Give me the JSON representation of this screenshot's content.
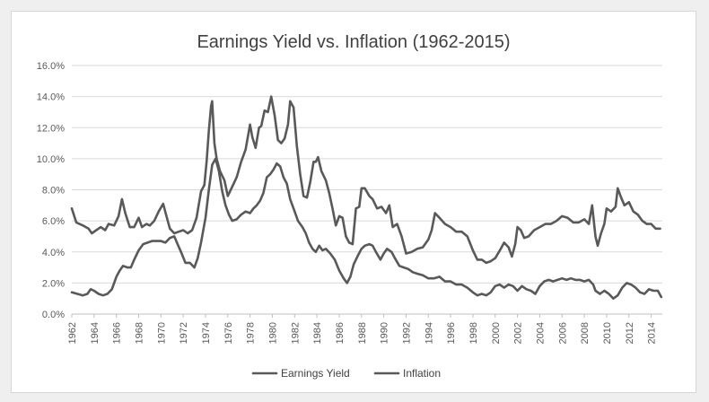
{
  "chart_data": {
    "type": "line",
    "title": "Earnings Yield vs. Inflation (1962-2015)",
    "xlabel": "",
    "ylabel": "",
    "xlim": [
      1962,
      2015
    ],
    "ylim": [
      0,
      16
    ],
    "yticks": [
      "0.0%",
      "2.0%",
      "4.0%",
      "6.0%",
      "8.0%",
      "10.0%",
      "12.0%",
      "14.0%",
      "16.0%"
    ],
    "xticks": [
      "1962",
      "1964",
      "1966",
      "1968",
      "1970",
      "1972",
      "1974",
      "1976",
      "1978",
      "1980",
      "1982",
      "1984",
      "1986",
      "1988",
      "1990",
      "1992",
      "1994",
      "1996",
      "1998",
      "2000",
      "2002",
      "2004",
      "2006",
      "2008",
      "2010",
      "2012",
      "2014"
    ],
    "grid": true,
    "legend_position": "bottom-center",
    "series": [
      {
        "name": "Earnings Yield",
        "color": "#595959",
        "points": [
          [
            1962.0,
            6.8
          ],
          [
            1962.4,
            5.9
          ],
          [
            1963.0,
            5.7
          ],
          [
            1963.5,
            5.5
          ],
          [
            1963.8,
            5.2
          ],
          [
            1964.2,
            5.4
          ],
          [
            1964.6,
            5.6
          ],
          [
            1965.0,
            5.4
          ],
          [
            1965.3,
            5.8
          ],
          [
            1965.8,
            5.7
          ],
          [
            1966.2,
            6.3
          ],
          [
            1966.5,
            7.4
          ],
          [
            1966.8,
            6.5
          ],
          [
            1967.2,
            5.6
          ],
          [
            1967.6,
            5.6
          ],
          [
            1968.0,
            6.2
          ],
          [
            1968.3,
            5.6
          ],
          [
            1968.7,
            5.8
          ],
          [
            1969.0,
            5.7
          ],
          [
            1969.4,
            6.0
          ],
          [
            1969.8,
            6.6
          ],
          [
            1970.2,
            7.1
          ],
          [
            1970.5,
            6.3
          ],
          [
            1970.8,
            5.5
          ],
          [
            1971.2,
            5.2
          ],
          [
            1971.6,
            5.3
          ],
          [
            1972.0,
            5.4
          ],
          [
            1972.4,
            5.2
          ],
          [
            1972.8,
            5.4
          ],
          [
            1973.2,
            6.2
          ],
          [
            1973.6,
            7.9
          ],
          [
            1973.9,
            8.3
          ],
          [
            1974.1,
            9.8
          ],
          [
            1974.3,
            11.8
          ],
          [
            1974.5,
            13.4
          ],
          [
            1974.6,
            13.7
          ],
          [
            1974.8,
            11.0
          ],
          [
            1975.0,
            10.0
          ],
          [
            1975.3,
            9.2
          ],
          [
            1975.7,
            8.6
          ],
          [
            1976.0,
            7.6
          ],
          [
            1976.4,
            8.2
          ],
          [
            1976.8,
            8.8
          ],
          [
            1977.2,
            9.8
          ],
          [
            1977.6,
            10.6
          ],
          [
            1978.0,
            12.2
          ],
          [
            1978.2,
            11.4
          ],
          [
            1978.5,
            10.7
          ],
          [
            1978.8,
            12.0
          ],
          [
            1979.0,
            12.1
          ],
          [
            1979.3,
            13.1
          ],
          [
            1979.6,
            13.0
          ],
          [
            1979.9,
            14.0
          ],
          [
            1980.2,
            12.8
          ],
          [
            1980.5,
            11.2
          ],
          [
            1980.8,
            11.0
          ],
          [
            1981.1,
            11.3
          ],
          [
            1981.4,
            12.2
          ],
          [
            1981.6,
            13.7
          ],
          [
            1981.9,
            13.3
          ],
          [
            1982.2,
            10.8
          ],
          [
            1982.5,
            9.0
          ],
          [
            1982.8,
            7.6
          ],
          [
            1983.1,
            7.5
          ],
          [
            1983.4,
            8.5
          ],
          [
            1983.7,
            9.8
          ],
          [
            1983.9,
            9.8
          ],
          [
            1984.1,
            10.1
          ],
          [
            1984.4,
            9.2
          ],
          [
            1984.8,
            8.6
          ],
          [
            1985.1,
            7.8
          ],
          [
            1985.4,
            6.8
          ],
          [
            1985.7,
            5.7
          ],
          [
            1986.0,
            6.3
          ],
          [
            1986.3,
            6.2
          ],
          [
            1986.6,
            5.0
          ],
          [
            1986.9,
            4.6
          ],
          [
            1987.2,
            4.5
          ],
          [
            1987.5,
            6.8
          ],
          [
            1987.8,
            6.9
          ],
          [
            1988.0,
            8.1
          ],
          [
            1988.3,
            8.1
          ],
          [
            1988.7,
            7.6
          ],
          [
            1989.0,
            7.4
          ],
          [
            1989.4,
            6.8
          ],
          [
            1989.8,
            6.9
          ],
          [
            1990.2,
            6.5
          ],
          [
            1990.5,
            7.0
          ],
          [
            1990.8,
            5.6
          ],
          [
            1991.2,
            5.8
          ],
          [
            1991.6,
            5.0
          ],
          [
            1992.0,
            3.9
          ],
          [
            1992.5,
            4.0
          ],
          [
            1993.0,
            4.2
          ],
          [
            1993.5,
            4.3
          ],
          [
            1994.0,
            4.8
          ],
          [
            1994.3,
            5.4
          ],
          [
            1994.6,
            6.5
          ],
          [
            1995.0,
            6.2
          ],
          [
            1995.5,
            5.8
          ],
          [
            1996.0,
            5.6
          ],
          [
            1996.5,
            5.3
          ],
          [
            1997.0,
            5.3
          ],
          [
            1997.5,
            5.0
          ],
          [
            1998.0,
            4.1
          ],
          [
            1998.4,
            3.5
          ],
          [
            1998.8,
            3.5
          ],
          [
            1999.2,
            3.3
          ],
          [
            1999.6,
            3.4
          ],
          [
            2000.0,
            3.6
          ],
          [
            2000.5,
            4.2
          ],
          [
            2000.8,
            4.6
          ],
          [
            2001.2,
            4.3
          ],
          [
            2001.5,
            3.7
          ],
          [
            2001.8,
            4.5
          ],
          [
            2002.0,
            5.6
          ],
          [
            2002.3,
            5.4
          ],
          [
            2002.6,
            4.9
          ],
          [
            2003.0,
            5.0
          ],
          [
            2003.5,
            5.4
          ],
          [
            2004.0,
            5.6
          ],
          [
            2004.5,
            5.8
          ],
          [
            2005.0,
            5.8
          ],
          [
            2005.5,
            6.0
          ],
          [
            2006.0,
            6.3
          ],
          [
            2006.5,
            6.2
          ],
          [
            2007.0,
            5.9
          ],
          [
            2007.5,
            5.9
          ],
          [
            2008.0,
            6.1
          ],
          [
            2008.4,
            5.8
          ],
          [
            2008.7,
            7.0
          ],
          [
            2009.0,
            5.0
          ],
          [
            2009.2,
            4.4
          ],
          [
            2009.5,
            5.2
          ],
          [
            2009.8,
            5.8
          ],
          [
            2010.0,
            6.8
          ],
          [
            2010.4,
            6.6
          ],
          [
            2010.8,
            6.9
          ],
          [
            2011.0,
            8.1
          ],
          [
            2011.3,
            7.5
          ],
          [
            2011.6,
            7.0
          ],
          [
            2012.0,
            7.2
          ],
          [
            2012.4,
            6.6
          ],
          [
            2012.8,
            6.4
          ],
          [
            2013.2,
            6.0
          ],
          [
            2013.6,
            5.8
          ],
          [
            2014.0,
            5.8
          ],
          [
            2014.4,
            5.5
          ],
          [
            2014.8,
            5.5
          ]
        ]
      },
      {
        "name": "Inflation",
        "color": "#595959",
        "points": [
          [
            1962.0,
            1.4
          ],
          [
            1962.5,
            1.3
          ],
          [
            1963.0,
            1.2
          ],
          [
            1963.4,
            1.3
          ],
          [
            1963.7,
            1.6
          ],
          [
            1964.0,
            1.5
          ],
          [
            1964.4,
            1.3
          ],
          [
            1964.8,
            1.2
          ],
          [
            1965.2,
            1.3
          ],
          [
            1965.6,
            1.6
          ],
          [
            1966.0,
            2.4
          ],
          [
            1966.3,
            2.8
          ],
          [
            1966.6,
            3.1
          ],
          [
            1967.0,
            3.0
          ],
          [
            1967.3,
            3.0
          ],
          [
            1967.6,
            3.5
          ],
          [
            1968.0,
            4.1
          ],
          [
            1968.4,
            4.5
          ],
          [
            1968.8,
            4.6
          ],
          [
            1969.2,
            4.7
          ],
          [
            1969.6,
            4.7
          ],
          [
            1970.0,
            4.7
          ],
          [
            1970.4,
            4.6
          ],
          [
            1970.8,
            4.9
          ],
          [
            1971.2,
            5.0
          ],
          [
            1971.5,
            4.5
          ],
          [
            1971.8,
            4.0
          ],
          [
            1972.2,
            3.3
          ],
          [
            1972.6,
            3.3
          ],
          [
            1973.0,
            3.0
          ],
          [
            1973.3,
            3.6
          ],
          [
            1973.6,
            4.6
          ],
          [
            1974.0,
            6.2
          ],
          [
            1974.3,
            8.0
          ],
          [
            1974.6,
            9.6
          ],
          [
            1974.9,
            10.0
          ],
          [
            1975.2,
            9.2
          ],
          [
            1975.5,
            7.9
          ],
          [
            1975.8,
            7.0
          ],
          [
            1976.1,
            6.4
          ],
          [
            1976.4,
            6.0
          ],
          [
            1976.8,
            6.1
          ],
          [
            1977.2,
            6.4
          ],
          [
            1977.6,
            6.6
          ],
          [
            1978.0,
            6.5
          ],
          [
            1978.3,
            6.8
          ],
          [
            1978.6,
            7.0
          ],
          [
            1978.9,
            7.3
          ],
          [
            1979.2,
            7.8
          ],
          [
            1979.5,
            8.8
          ],
          [
            1979.8,
            9.0
          ],
          [
            1980.1,
            9.3
          ],
          [
            1980.4,
            9.7
          ],
          [
            1980.7,
            9.5
          ],
          [
            1981.0,
            8.8
          ],
          [
            1981.3,
            8.4
          ],
          [
            1981.6,
            7.4
          ],
          [
            1982.0,
            6.6
          ],
          [
            1982.3,
            6.0
          ],
          [
            1982.7,
            5.6
          ],
          [
            1983.0,
            5.2
          ],
          [
            1983.3,
            4.6
          ],
          [
            1983.6,
            4.2
          ],
          [
            1983.9,
            4.0
          ],
          [
            1984.2,
            4.4
          ],
          [
            1984.5,
            4.1
          ],
          [
            1984.8,
            4.2
          ],
          [
            1985.2,
            3.9
          ],
          [
            1985.6,
            3.5
          ],
          [
            1986.0,
            2.8
          ],
          [
            1986.4,
            2.3
          ],
          [
            1986.7,
            2.0
          ],
          [
            1987.0,
            2.4
          ],
          [
            1987.3,
            3.2
          ],
          [
            1987.7,
            3.8
          ],
          [
            1988.0,
            4.2
          ],
          [
            1988.3,
            4.4
          ],
          [
            1988.7,
            4.5
          ],
          [
            1989.0,
            4.4
          ],
          [
            1989.3,
            4.0
          ],
          [
            1989.7,
            3.5
          ],
          [
            1990.0,
            3.9
          ],
          [
            1990.3,
            4.2
          ],
          [
            1990.7,
            4.0
          ],
          [
            1991.0,
            3.6
          ],
          [
            1991.4,
            3.1
          ],
          [
            1991.8,
            3.0
          ],
          [
            1992.2,
            2.9
          ],
          [
            1992.6,
            2.7
          ],
          [
            1993.0,
            2.6
          ],
          [
            1993.5,
            2.5
          ],
          [
            1994.0,
            2.3
          ],
          [
            1994.5,
            2.3
          ],
          [
            1995.0,
            2.4
          ],
          [
            1995.5,
            2.1
          ],
          [
            1996.0,
            2.1
          ],
          [
            1996.5,
            1.9
          ],
          [
            1997.0,
            1.9
          ],
          [
            1997.5,
            1.7
          ],
          [
            1998.0,
            1.4
          ],
          [
            1998.4,
            1.2
          ],
          [
            1998.8,
            1.3
          ],
          [
            1999.2,
            1.2
          ],
          [
            1999.6,
            1.4
          ],
          [
            2000.0,
            1.8
          ],
          [
            2000.4,
            1.9
          ],
          [
            2000.8,
            1.7
          ],
          [
            2001.2,
            1.9
          ],
          [
            2001.6,
            1.8
          ],
          [
            2002.0,
            1.5
          ],
          [
            2002.4,
            1.8
          ],
          [
            2002.8,
            1.6
          ],
          [
            2003.2,
            1.5
          ],
          [
            2003.6,
            1.3
          ],
          [
            2004.0,
            1.8
          ],
          [
            2004.4,
            2.1
          ],
          [
            2004.8,
            2.2
          ],
          [
            2005.2,
            2.1
          ],
          [
            2005.6,
            2.2
          ],
          [
            2006.0,
            2.3
          ],
          [
            2006.4,
            2.2
          ],
          [
            2006.8,
            2.3
          ],
          [
            2007.2,
            2.2
          ],
          [
            2007.6,
            2.2
          ],
          [
            2008.0,
            2.1
          ],
          [
            2008.4,
            2.2
          ],
          [
            2008.8,
            1.9
          ],
          [
            2009.0,
            1.5
          ],
          [
            2009.4,
            1.3
          ],
          [
            2009.8,
            1.5
          ],
          [
            2010.2,
            1.3
          ],
          [
            2010.6,
            1.0
          ],
          [
            2011.0,
            1.2
          ],
          [
            2011.4,
            1.7
          ],
          [
            2011.8,
            2.0
          ],
          [
            2012.2,
            1.9
          ],
          [
            2012.6,
            1.7
          ],
          [
            2013.0,
            1.4
          ],
          [
            2013.4,
            1.3
          ],
          [
            2013.8,
            1.6
          ],
          [
            2014.2,
            1.5
          ],
          [
            2014.6,
            1.5
          ],
          [
            2014.9,
            1.1
          ]
        ]
      }
    ]
  }
}
